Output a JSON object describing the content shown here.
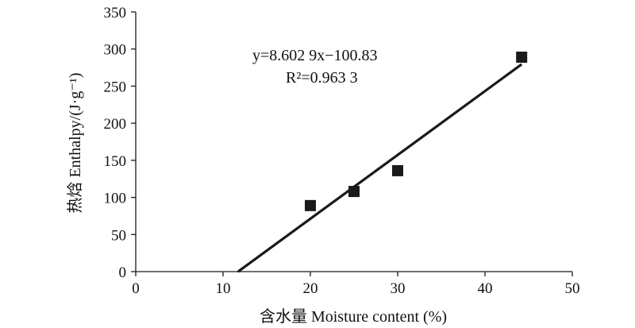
{
  "chart_data": {
    "type": "scatter",
    "xlabel": "含水量 Moisture content (%)",
    "ylabel": "热焓 Enthalpy/(J·g⁻¹)",
    "xlim": [
      0,
      50
    ],
    "ylim": [
      0,
      350
    ],
    "xticks": [
      0,
      10,
      20,
      30,
      40,
      50
    ],
    "yticks": [
      0,
      50,
      100,
      150,
      200,
      250,
      300,
      350
    ],
    "grid": false,
    "legend": "none",
    "marker": "square",
    "colors": {
      "marker": "#1a1a1a",
      "line": "#1a1a1a",
      "axis": "#1a1a1a"
    },
    "series": [
      {
        "points": [
          {
            "x": 20,
            "y": 89
          },
          {
            "x": 25,
            "y": 108
          },
          {
            "x": 30,
            "y": 136
          },
          {
            "x": 44.2,
            "y": 289
          }
        ]
      }
    ],
    "trendline": {
      "slope": 8.6029,
      "intercept": -100.83,
      "x_range": [
        11.7,
        44.2
      ]
    },
    "annotations": {
      "equation": "y=8.602 9x−100.83",
      "r_squared": "R²=0.963 3"
    }
  }
}
